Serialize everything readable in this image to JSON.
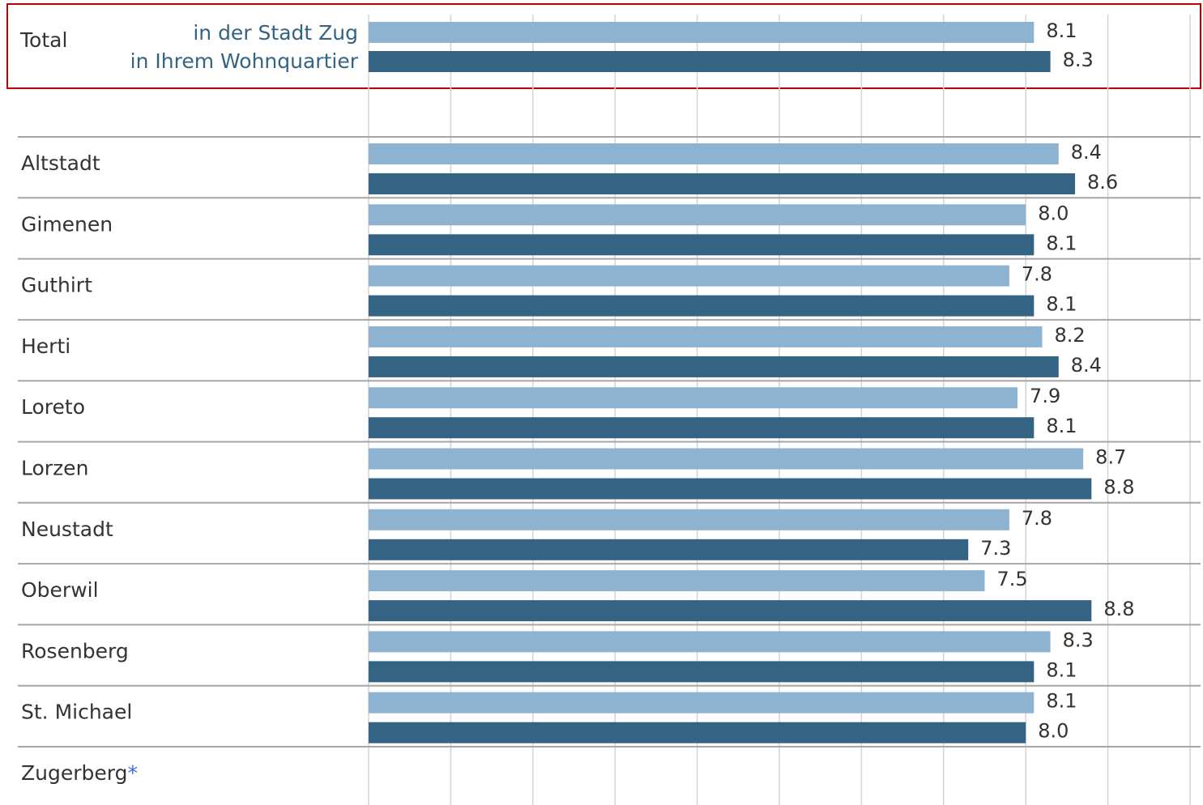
{
  "chart_data": {
    "type": "bar",
    "orientation": "horizontal",
    "categories": [
      "Total",
      "Altstadt",
      "Gimenen",
      "Guthirt",
      "Herti",
      "Loreto",
      "Lorzen",
      "Neustadt",
      "Oberwil",
      "Rosenberg",
      "St. Michael",
      "Zugerberg"
    ],
    "footnote_marker": "*",
    "series": [
      {
        "name": "in der Stadt Zug",
        "color": "#8db3d1",
        "values": [
          8.1,
          8.4,
          8,
          7.8,
          8.2,
          7.9,
          8.7,
          7.8,
          7.5,
          8.3,
          8.1,
          null
        ],
        "value_labels": [
          "8.1",
          "8.4",
          "8.0",
          "7.8",
          "8.2",
          "7.9",
          "8.7",
          "7.8",
          "7.5",
          "8.3",
          "8.1",
          null
        ]
      },
      {
        "name": "in Ihrem Wohnquartier",
        "color": "#356384",
        "values": [
          8.3,
          8.6,
          8.1,
          8.1,
          8.4,
          8.1,
          8.8,
          7.3,
          8.8,
          8.1,
          8,
          null
        ],
        "value_labels": [
          "8.3",
          "8.6",
          "8.1",
          "8.1",
          "8.4",
          "8.1",
          "8.8",
          "7.3",
          "8.8",
          "8.1",
          "8.0",
          null
        ]
      }
    ],
    "xlim": [
      0,
      10
    ],
    "xticks": [
      0,
      1,
      2,
      3,
      4,
      5,
      6,
      7,
      8,
      9,
      10
    ],
    "grid": true
  }
}
